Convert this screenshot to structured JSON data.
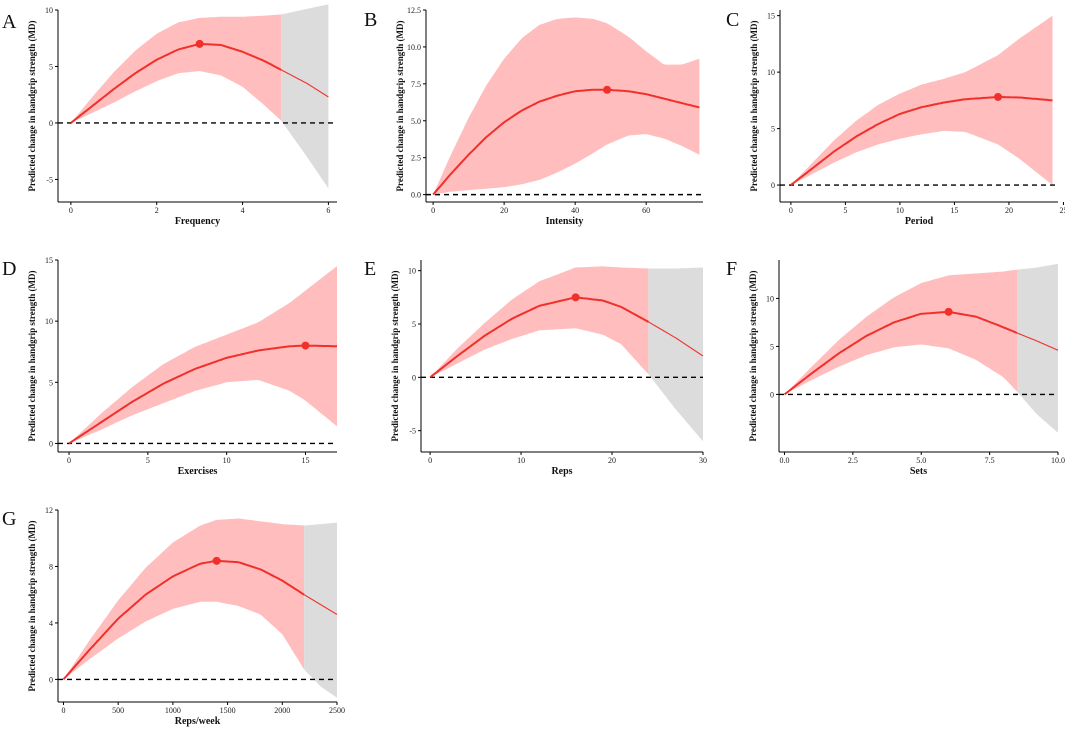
{
  "figure": {
    "ylabel": "Predicted change in handgrip strength (MD)",
    "colors": {
      "band_in": "#ffbdbd",
      "band_out": "#dcdcdc",
      "line": "#f0302b",
      "point": "#f0302b",
      "axis": "#000000",
      "zero_line": "#000000"
    }
  },
  "chart_data": [
    {
      "panel": "A",
      "type": "line",
      "xlabel": "Frequency",
      "xlim": [
        -0.3,
        6.2
      ],
      "ylim": [
        -7,
        10
      ],
      "xticks": [
        0,
        2,
        4,
        6
      ],
      "xtick_labels": [
        "0",
        "2",
        "4",
        "6"
      ],
      "yticks": [
        -5,
        0,
        5,
        10
      ],
      "ytick_labels": [
        "-5",
        "0",
        "5",
        "10"
      ],
      "cutoff": 4.9,
      "optimum": {
        "x": 3,
        "y": 7.0
      },
      "x": [
        0,
        0.5,
        1,
        1.5,
        2,
        2.5,
        3,
        3.5,
        4,
        4.5,
        4.9,
        5.5,
        6
      ],
      "y": [
        0,
        1.5,
        3.0,
        4.4,
        5.6,
        6.5,
        7.0,
        6.9,
        6.3,
        5.5,
        4.7,
        3.5,
        2.3
      ],
      "lower": [
        0,
        0.9,
        1.8,
        2.8,
        3.7,
        4.4,
        4.6,
        4.2,
        3.2,
        1.6,
        0.2,
        -3.0,
        -5.8
      ],
      "upper": [
        0,
        2.3,
        4.5,
        6.4,
        7.9,
        8.9,
        9.3,
        9.4,
        9.4,
        9.5,
        9.6,
        10.1,
        10.5
      ]
    },
    {
      "panel": "B",
      "type": "line",
      "xlabel": "Intensity",
      "xlim": [
        -2,
        76
      ],
      "ylim": [
        -0.5,
        12.5
      ],
      "xticks": [
        0,
        20,
        40,
        60
      ],
      "xtick_labels": [
        "0",
        "20",
        "40",
        "60"
      ],
      "yticks": [
        0,
        2.5,
        5,
        7.5,
        10,
        12.5
      ],
      "ytick_labels": [
        "0.0",
        "2.5",
        "5.0",
        "7.5",
        "10.0",
        "12.5"
      ],
      "cutoff": null,
      "optimum": {
        "x": 49,
        "y": 7.1
      },
      "x": [
        0,
        5,
        10,
        15,
        20,
        25,
        30,
        35,
        40,
        45,
        49,
        55,
        60,
        65,
        70,
        75
      ],
      "y": [
        0,
        1.4,
        2.7,
        3.9,
        4.9,
        5.7,
        6.3,
        6.7,
        7.0,
        7.1,
        7.1,
        7.0,
        6.8,
        6.5,
        6.2,
        5.9
      ],
      "lower": [
        0,
        0.2,
        0.3,
        0.4,
        0.5,
        0.7,
        1.0,
        1.5,
        2.1,
        2.8,
        3.4,
        4.0,
        4.1,
        3.8,
        3.3,
        2.7
      ],
      "upper": [
        0,
        2.7,
        5.2,
        7.4,
        9.2,
        10.6,
        11.5,
        11.9,
        12.0,
        11.9,
        11.6,
        10.7,
        9.7,
        8.8,
        8.8,
        9.2
      ]
    },
    {
      "panel": "C",
      "type": "line",
      "xlabel": "Period",
      "xlim": [
        -1,
        24.5
      ],
      "ylim": [
        -1.5,
        15.5
      ],
      "xticks": [
        0,
        5,
        10,
        15,
        20,
        25
      ],
      "xtick_labels": [
        "0",
        "5",
        "10",
        "15",
        "20",
        "25"
      ],
      "yticks": [
        0,
        5,
        10,
        15
      ],
      "ytick_labels": [
        "0",
        "5",
        "10",
        "15"
      ],
      "cutoff": null,
      "optimum": {
        "x": 19,
        "y": 7.8
      },
      "x": [
        0,
        2,
        4,
        6,
        8,
        10,
        12,
        14,
        16,
        19,
        21,
        24
      ],
      "y": [
        0,
        1.5,
        3.0,
        4.3,
        5.4,
        6.3,
        6.9,
        7.3,
        7.6,
        7.8,
        7.75,
        7.5
      ],
      "lower": [
        0,
        1.0,
        2.0,
        2.9,
        3.6,
        4.1,
        4.5,
        4.8,
        4.7,
        3.6,
        2.3,
        0
      ],
      "upper": [
        0,
        2.0,
        4.0,
        5.7,
        7.1,
        8.1,
        8.9,
        9.4,
        10.0,
        11.5,
        13.0,
        15.0
      ]
    },
    {
      "panel": "D",
      "type": "line",
      "xlabel": "Exercises",
      "xlim": [
        -0.7,
        17
      ],
      "ylim": [
        -0.7,
        15
      ],
      "xticks": [
        0,
        5,
        10,
        15
      ],
      "xtick_labels": [
        "0",
        "5",
        "10",
        "15"
      ],
      "yticks": [
        0,
        5,
        10,
        15
      ],
      "ytick_labels": [
        "0",
        "5",
        "10",
        "15"
      ],
      "cutoff": null,
      "optimum": {
        "x": 15,
        "y": 8.0
      },
      "x": [
        0,
        2,
        4,
        6,
        8,
        10,
        12,
        14,
        15,
        17
      ],
      "y": [
        0,
        1.7,
        3.4,
        4.9,
        6.1,
        7.0,
        7.6,
        7.95,
        8.0,
        7.95
      ],
      "lower": [
        0,
        1.1,
        2.3,
        3.3,
        4.3,
        5.0,
        5.2,
        4.3,
        3.5,
        1.4
      ],
      "upper": [
        0,
        2.4,
        4.6,
        6.5,
        7.9,
        8.9,
        9.9,
        11.5,
        12.5,
        14.5
      ]
    },
    {
      "panel": "E",
      "type": "line",
      "xlabel": "Reps",
      "xlim": [
        -1,
        30
      ],
      "ylim": [
        -7,
        11
      ],
      "xticks": [
        0,
        10,
        20,
        30
      ],
      "xtick_labels": [
        "0",
        "10",
        "20",
        "30"
      ],
      "yticks": [
        -5,
        0,
        5,
        10
      ],
      "ytick_labels": [
        "-5",
        "0",
        "5",
        "10"
      ],
      "cutoff": 24,
      "optimum": {
        "x": 16,
        "y": 7.5
      },
      "x": [
        0,
        3,
        6,
        9,
        12,
        16,
        19,
        21,
        24,
        27,
        30
      ],
      "y": [
        0,
        2.0,
        3.9,
        5.5,
        6.7,
        7.5,
        7.2,
        6.6,
        5.2,
        3.7,
        2.0
      ],
      "lower": [
        0,
        1.3,
        2.6,
        3.6,
        4.4,
        4.6,
        4.0,
        3.1,
        0.3,
        -3.0,
        -6.0
      ],
      "upper": [
        0,
        2.7,
        5.1,
        7.3,
        9.0,
        10.3,
        10.4,
        10.3,
        10.2,
        10.2,
        10.3
      ]
    },
    {
      "panel": "F",
      "type": "line",
      "xlabel": "Sets",
      "xlim": [
        -0.2,
        10
      ],
      "ylim": [
        -6,
        14
      ],
      "xticks": [
        0,
        2.5,
        5,
        7.5,
        10
      ],
      "xtick_labels": [
        "0.0",
        "2.5",
        "5.0",
        "7.5",
        "10.0"
      ],
      "yticks": [
        0,
        5,
        10
      ],
      "ytick_labels": [
        "0",
        "5",
        "10"
      ],
      "cutoff": 8.5,
      "optimum": {
        "x": 6,
        "y": 8.6
      },
      "x": [
        0,
        1,
        2,
        3,
        4,
        5,
        6,
        7,
        8,
        8.5,
        9.2,
        10
      ],
      "y": [
        0,
        2.2,
        4.3,
        6.1,
        7.5,
        8.4,
        8.6,
        8.1,
        7.0,
        6.4,
        5.6,
        4.6
      ],
      "lower": [
        0,
        1.5,
        2.9,
        4.1,
        4.9,
        5.2,
        4.8,
        3.6,
        1.8,
        0.3,
        -2.0,
        -4.0
      ],
      "upper": [
        0,
        2.9,
        5.7,
        8.1,
        10.1,
        11.6,
        12.4,
        12.6,
        12.8,
        13.0,
        13.2,
        13.6
      ]
    },
    {
      "panel": "G",
      "type": "line",
      "xlabel": "Reps/week",
      "xlim": [
        -50,
        2500
      ],
      "ylim": [
        -1.6,
        12
      ],
      "xticks": [
        0,
        500,
        1000,
        1500,
        2000,
        2500
      ],
      "xtick_labels": [
        "0",
        "500",
        "1000",
        "1500",
        "2000",
        "2500"
      ],
      "yticks": [
        0,
        4,
        8,
        12
      ],
      "ytick_labels": [
        "0",
        "4",
        "8",
        "12"
      ],
      "cutoff": 2200,
      "optimum": {
        "x": 1400,
        "y": 8.4
      },
      "x": [
        0,
        250,
        500,
        750,
        1000,
        1250,
        1400,
        1600,
        1800,
        2000,
        2200,
        2350,
        2500
      ],
      "y": [
        0,
        2.2,
        4.3,
        6.0,
        7.3,
        8.2,
        8.4,
        8.3,
        7.8,
        7.0,
        6.0,
        5.3,
        4.6
      ],
      "lower": [
        0,
        1.5,
        2.9,
        4.1,
        5.0,
        5.5,
        5.5,
        5.2,
        4.6,
        3.2,
        0.7,
        -0.5,
        -1.3
      ],
      "upper": [
        0,
        2.9,
        5.6,
        7.9,
        9.7,
        10.9,
        11.3,
        11.4,
        11.2,
        11.0,
        10.9,
        11.0,
        11.1
      ]
    }
  ]
}
